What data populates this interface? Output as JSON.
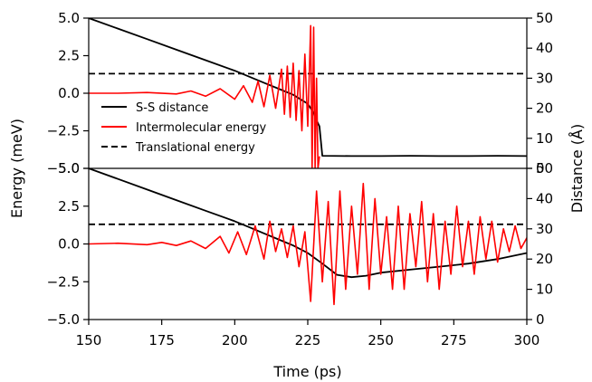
{
  "chart_data": {
    "type": "line",
    "xlabel": "Time (ps)",
    "ylabel_left": "Energy (meV)",
    "ylabel_right": "Distance (Å)",
    "xlim": [
      150,
      300
    ],
    "x_ticks": [
      "150",
      "175",
      "200",
      "225",
      "250",
      "275",
      "300"
    ],
    "x_tick_values": [
      150,
      175,
      200,
      225,
      250,
      275,
      300
    ],
    "energy_ylim": [
      -5,
      5
    ],
    "energy_ticks": [
      "5.0",
      "2.5",
      "0.0",
      "−2.5",
      "−5.0"
    ],
    "energy_tick_values": [
      5,
      2.5,
      0,
      -2.5,
      -5
    ],
    "distance_ylim": [
      0,
      50
    ],
    "distance_ticks": [
      "50",
      "40",
      "30",
      "20",
      "10",
      "0"
    ],
    "distance_tick_values": [
      50,
      40,
      30,
      20,
      10,
      0
    ],
    "legend_location": "lower-left (top panel)",
    "legend": [
      {
        "label": "S-S distance",
        "color": "#000000",
        "style": "solid"
      },
      {
        "label": "Intermolecular energy",
        "color": "#ff0000",
        "style": "solid"
      },
      {
        "label": "Translational energy",
        "color": "#000000",
        "style": "dashed"
      }
    ],
    "panels": [
      {
        "name": "top",
        "series": [
          {
            "name": "S-S distance",
            "axis": "distance",
            "color": "#000000",
            "dash": "solid",
            "x": [
              150,
              160,
              170,
              180,
              190,
              200,
              210,
              215,
              220,
              225,
              227,
              228,
              229,
              230,
              240,
              250,
              260,
              270,
              280,
              290,
              300
            ],
            "y": [
              50,
              46.5,
              43,
              39.5,
              36,
              32.5,
              28.5,
              26.5,
              24.5,
              21.5,
              18.5,
              16,
              14,
              4.2,
              4.1,
              4.1,
              4.2,
              4.1,
              4.1,
              4.2,
              4.1
            ]
          },
          {
            "name": "Translational energy",
            "axis": "energy",
            "color": "#000000",
            "dash": "dashed",
            "x": [
              150,
              300
            ],
            "y": [
              1.3,
              1.3
            ]
          },
          {
            "name": "Intermolecular energy",
            "axis": "energy",
            "color": "#ff0000",
            "dash": "solid",
            "x": [
              150,
              160,
              170,
              180,
              185,
              190,
              195,
              200,
              203,
              206,
              208,
              210,
              212,
              214,
              216,
              217,
              218,
              219,
              220,
              221,
              222,
              223,
              224,
              225,
              226,
              226.5,
              227,
              227.5,
              228,
              228.5,
              229
            ],
            "y": [
              0.0,
              0.0,
              0.05,
              -0.05,
              0.15,
              -0.2,
              0.3,
              -0.4,
              0.5,
              -0.6,
              0.8,
              -0.9,
              1.2,
              -1.0,
              1.6,
              -1.4,
              1.8,
              -1.6,
              2.0,
              -1.8,
              1.5,
              -2.5,
              2.6,
              -2.2,
              4.5,
              -5.0,
              4.4,
              -5.0,
              1.0,
              -5.0,
              -4.2
            ]
          }
        ]
      },
      {
        "name": "bottom",
        "series": [
          {
            "name": "S-S distance",
            "axis": "distance",
            "color": "#000000",
            "dash": "solid",
            "x": [
              150,
              160,
              170,
              180,
              190,
              200,
              205,
              210,
              215,
              220,
              225,
              230,
              235,
              240,
              245,
              250,
              260,
              270,
              280,
              290,
              300
            ],
            "y": [
              50,
              46.5,
              43,
              39.5,
              36,
              32.5,
              30.5,
              28.5,
              26.5,
              24.5,
              22,
              18.5,
              14.8,
              14,
              14.5,
              15.5,
              16.5,
              17.5,
              18.5,
              20,
              22
            ]
          },
          {
            "name": "Translational energy",
            "axis": "energy",
            "color": "#000000",
            "dash": "dashed",
            "x": [
              150,
              300
            ],
            "y": [
              1.3,
              1.3
            ]
          },
          {
            "name": "Intermolecular energy",
            "axis": "energy",
            "color": "#ff0000",
            "dash": "solid",
            "x": [
              150,
              160,
              170,
              175,
              180,
              185,
              190,
              195,
              198,
              201,
              204,
              207,
              210,
              212,
              214,
              216,
              218,
              220,
              222,
              224,
              226,
              228,
              230,
              232,
              234,
              236,
              238,
              240,
              242,
              244,
              246,
              248,
              250,
              252,
              254,
              256,
              258,
              260,
              262,
              264,
              266,
              268,
              270,
              272,
              274,
              276,
              278,
              280,
              282,
              284,
              286,
              288,
              290,
              292,
              294,
              296,
              298,
              300
            ],
            "y": [
              0.0,
              0.05,
              -0.05,
              0.1,
              -0.1,
              0.2,
              -0.3,
              0.5,
              -0.6,
              0.8,
              -0.7,
              1.2,
              -1.0,
              1.5,
              -0.5,
              1.0,
              -0.9,
              1.2,
              -1.5,
              0.8,
              -3.8,
              3.5,
              -2.5,
              2.8,
              -4.0,
              3.5,
              -3.0,
              2.5,
              -2.0,
              4.0,
              -3.0,
              3.0,
              -2.0,
              1.8,
              -3.0,
              2.5,
              -3.0,
              2.0,
              -1.5,
              2.8,
              -2.5,
              2.0,
              -3.0,
              1.5,
              -2.0,
              2.5,
              -1.5,
              1.5,
              -2.0,
              1.8,
              -1.0,
              1.5,
              -1.2,
              1.0,
              -0.5,
              1.2,
              -0.3,
              0.4
            ]
          }
        ]
      }
    ]
  }
}
